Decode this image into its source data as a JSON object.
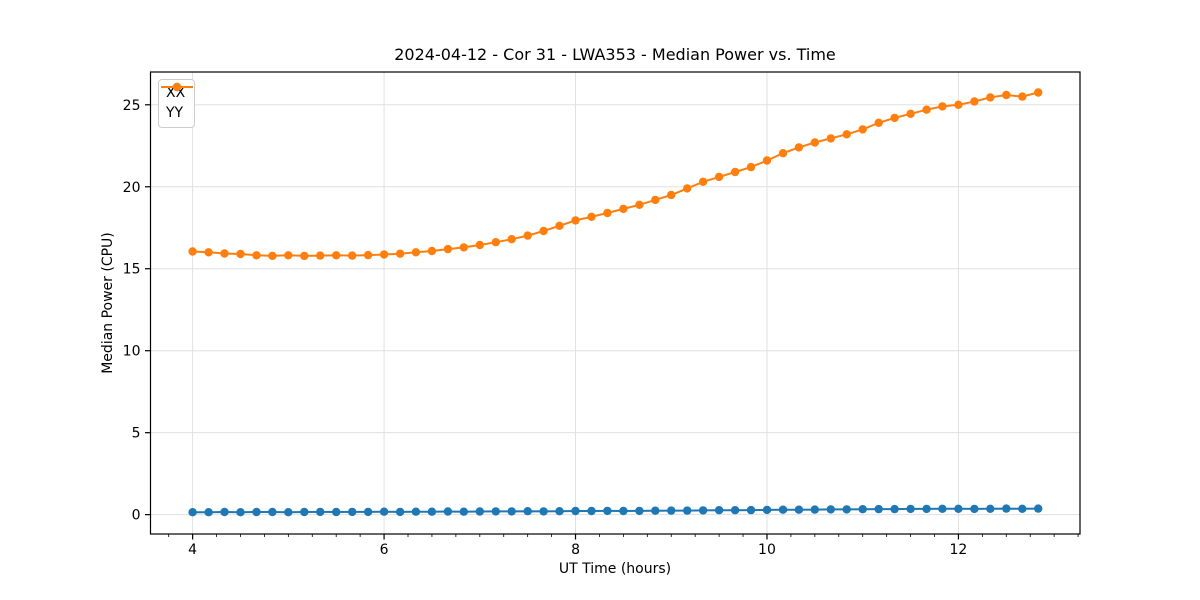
{
  "figure": {
    "title": "2024-04-12 - Cor 31 - LWA353 - Median Power vs. Time",
    "xlabel": "UT Time (hours)",
    "ylabel": "Median Power (CPU)",
    "background": "#ffffff"
  },
  "chart_data": {
    "type": "line",
    "title": "2024-04-12 - Cor 31 - LWA353 - Median Power vs. Time",
    "xlabel": "UT Time (hours)",
    "ylabel": "Median Power (CPU)",
    "xlim": [
      3.56,
      13.27
    ],
    "ylim": [
      -1.18,
      27.0
    ],
    "x_major_ticks": [
      4,
      6,
      8,
      10,
      12
    ],
    "x_minor_tick_step": 0.25,
    "y_major_ticks": [
      0,
      5,
      10,
      15,
      20,
      25
    ],
    "grid": true,
    "grid_color": "#e0e0e0",
    "legend_position": "upper-left",
    "x": [
      4.0,
      4.167,
      4.333,
      4.5,
      4.667,
      4.833,
      5.0,
      5.167,
      5.333,
      5.5,
      5.667,
      5.833,
      6.0,
      6.167,
      6.333,
      6.5,
      6.667,
      6.833,
      7.0,
      7.167,
      7.333,
      7.5,
      7.667,
      7.833,
      8.0,
      8.167,
      8.333,
      8.5,
      8.667,
      8.833,
      9.0,
      9.167,
      9.333,
      9.5,
      9.667,
      9.833,
      10.0,
      10.167,
      10.333,
      10.5,
      10.667,
      10.833,
      11.0,
      11.167,
      11.333,
      11.5,
      11.667,
      11.833,
      12.0,
      12.167,
      12.333,
      12.5,
      12.667,
      12.833
    ],
    "series": [
      {
        "name": "XX",
        "color": "#1f77b4",
        "values": [
          0.15,
          0.15,
          0.16,
          0.15,
          0.16,
          0.16,
          0.15,
          0.16,
          0.17,
          0.16,
          0.17,
          0.17,
          0.18,
          0.17,
          0.18,
          0.18,
          0.19,
          0.18,
          0.19,
          0.2,
          0.2,
          0.21,
          0.2,
          0.21,
          0.22,
          0.22,
          0.23,
          0.22,
          0.23,
          0.24,
          0.25,
          0.25,
          0.26,
          0.27,
          0.27,
          0.28,
          0.29,
          0.3,
          0.3,
          0.31,
          0.32,
          0.32,
          0.33,
          0.34,
          0.34,
          0.35,
          0.35,
          0.36,
          0.36,
          0.35,
          0.36,
          0.37,
          0.36,
          0.37
        ]
      },
      {
        "name": "YY",
        "color": "#ff7f0e",
        "values": [
          16.05,
          16.0,
          15.93,
          15.9,
          15.82,
          15.78,
          15.82,
          15.78,
          15.8,
          15.82,
          15.8,
          15.83,
          15.87,
          15.92,
          16.0,
          16.08,
          16.2,
          16.3,
          16.45,
          16.62,
          16.8,
          17.02,
          17.3,
          17.62,
          17.95,
          18.17,
          18.4,
          18.65,
          18.9,
          19.2,
          19.5,
          19.9,
          20.3,
          20.6,
          20.9,
          21.2,
          21.6,
          22.05,
          22.4,
          22.7,
          22.95,
          23.2,
          23.5,
          23.9,
          24.2,
          24.45,
          24.7,
          24.9,
          25.0,
          25.2,
          25.45,
          25.6,
          25.5,
          25.75
        ]
      }
    ]
  }
}
